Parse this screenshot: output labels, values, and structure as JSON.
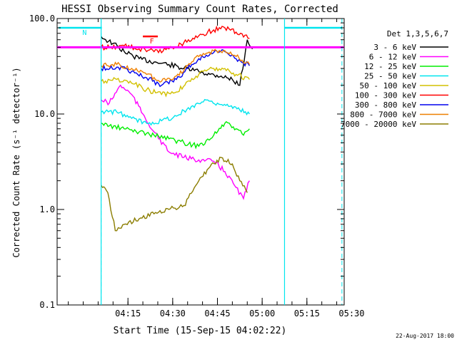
{
  "chart_data": {
    "type": "line",
    "title": "HESSI Observing Summary Count Rates, Corrected",
    "xlabel": "Start Time (15-Sep-15 04:02:22)",
    "ylabel": "Corrected Count Rate (s⁻¹ detector⁻¹)",
    "y_scale": "log",
    "ylim": [
      0.1,
      100.0
    ],
    "xlim_minutes_after_04:00": [
      7,
      45.5
    ],
    "y_ticks": [
      {
        "value": 0.1,
        "label": "0.1"
      },
      {
        "value": 1.0,
        "label": "1.0"
      },
      {
        "value": 10.0,
        "label": "10.0"
      },
      {
        "value": 100.0,
        "label": "100.0"
      }
    ],
    "x_ticks": [
      {
        "t": 16.5,
        "label": "04:15"
      },
      {
        "t": 22.5,
        "label": "04:30"
      },
      {
        "t": 28.5,
        "label": "04:45"
      },
      {
        "t": 34.5,
        "label": "05:00"
      },
      {
        "t": 40.5,
        "label": "05:15"
      },
      {
        "t": 46.5,
        "label": "05:30"
      }
    ],
    "legend_title": "Det 1,3,5,6,7",
    "legend_position": "right",
    "series": [
      {
        "name": "3 - 6 keV",
        "color": "#000000",
        "x": [
          12.9,
          13.5,
          14.5,
          16,
          18,
          20,
          22,
          24,
          26,
          27.5,
          29,
          30.5,
          31.5,
          32.5,
          33.2
        ],
        "y": [
          65,
          60,
          55,
          45,
          38,
          35,
          33,
          30,
          28,
          26,
          25,
          23,
          20,
          60,
          48
        ]
      },
      {
        "name": "6 - 12 keV",
        "color": "#ff00ff",
        "x": [
          12.9,
          14,
          15.5,
          17,
          18.5,
          20,
          22,
          24,
          26,
          28,
          29.5,
          31,
          32,
          32.8
        ],
        "y": [
          14,
          13,
          20,
          16,
          10,
          6.5,
          4,
          3.5,
          3.3,
          3.2,
          2.5,
          1.7,
          1.3,
          2.0
        ]
      },
      {
        "name": "12 - 25 keV",
        "color": "#00ee00",
        "x": [
          12.9,
          14,
          16,
          18,
          20,
          22,
          24,
          26,
          28,
          29.5,
          31,
          32,
          32.8
        ],
        "y": [
          8,
          7.5,
          7,
          6.5,
          6,
          5.5,
          5,
          4.6,
          6,
          8,
          7,
          6,
          7
        ]
      },
      {
        "name": "25 - 50 keV",
        "color": "#00e5ee",
        "x": [
          12.9,
          15,
          17,
          19,
          21,
          23,
          25,
          27,
          28.5,
          30,
          31.5,
          32.8
        ],
        "y": [
          10.5,
          10.5,
          9,
          8,
          8.5,
          9.5,
          12,
          14,
          13,
          12,
          11,
          10
        ]
      },
      {
        "name": "50 - 100 keV",
        "color": "#d2c000",
        "x": [
          12.9,
          15,
          17,
          19,
          21,
          23,
          24.5,
          26,
          28,
          29.5,
          31,
          32.8
        ],
        "y": [
          22,
          23,
          21,
          18,
          16,
          17,
          22,
          26,
          30,
          30,
          26,
          23
        ]
      },
      {
        "name": "100 - 300 keV",
        "color": "#ff0000",
        "x": [
          12.9,
          14,
          16,
          18,
          20,
          22,
          24,
          26,
          28,
          29.5,
          31,
          32.8
        ],
        "y": [
          50,
          50,
          52,
          48,
          45,
          48,
          56,
          66,
          76,
          80,
          72,
          62
        ]
      },
      {
        "name": "300 - 800 keV",
        "color": "#0000ee",
        "x": [
          12.9,
          15,
          17,
          19,
          21,
          23,
          24.5,
          26,
          28,
          29.5,
          31,
          32.8
        ],
        "y": [
          30,
          31,
          28,
          24,
          20,
          23,
          30,
          38,
          44,
          45,
          38,
          32
        ]
      },
      {
        "name": "800 - 7000 keV",
        "color": "#ee7f00",
        "x": [
          12.9,
          15,
          17,
          19,
          21,
          23,
          24.5,
          26,
          28,
          29.5,
          31,
          32.8
        ],
        "y": [
          32,
          33,
          30,
          26,
          22,
          25,
          32,
          40,
          46,
          46,
          40,
          33
        ]
      },
      {
        "name": "7000 - 20000 keV",
        "color": "#8b7d00",
        "x": [
          12.9,
          13.8,
          14.8,
          16,
          18,
          20,
          22,
          24,
          26,
          27.5,
          29,
          30.5,
          31.5,
          32.5
        ],
        "y": [
          1.8,
          1.5,
          0.6,
          0.7,
          0.8,
          0.9,
          1.0,
          1.1,
          2.0,
          2.8,
          3.5,
          3.0,
          2.0,
          1.5
        ]
      }
    ],
    "markers": [
      {
        "type": "saa_bar",
        "label": "N",
        "t_start": 7.2,
        "t_end": 13.0,
        "level": 80,
        "color": "#00e5ee"
      },
      {
        "type": "saa_bar",
        "label": "",
        "t_start": 37.5,
        "t_end": 45.2,
        "level": 80,
        "color": "#00e5ee"
      },
      {
        "type": "flare_bar",
        "label": "F",
        "t_start": 18.5,
        "t_end": 20.5,
        "level": 65,
        "color": "#ff0000"
      },
      {
        "type": "attenuator_level",
        "t_start": 7.0,
        "t_end": 45.5,
        "level": 50,
        "color": "#ff00ff"
      },
      {
        "type": "night_boundary",
        "t": 12.9,
        "color": "#00e5ee"
      },
      {
        "type": "night_boundary",
        "t": 37.5,
        "color": "#00e5ee"
      }
    ],
    "grid": false
  },
  "footer": {
    "timestamp": "22-Aug-2017 18:00"
  }
}
